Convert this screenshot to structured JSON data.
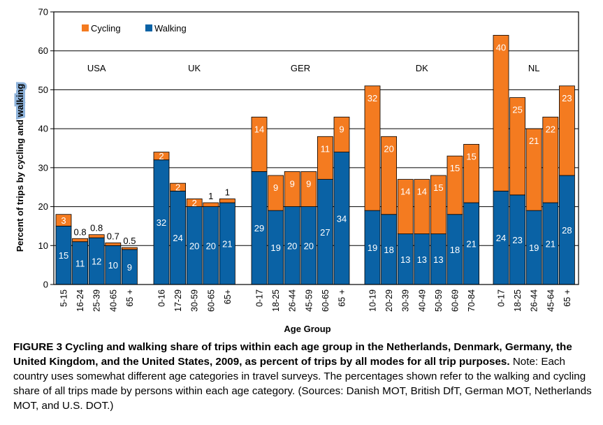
{
  "colors": {
    "cycling": "#f47b20",
    "walking": "#0a62a5",
    "frame": "#000000",
    "grid": "#000000"
  },
  "chart_data": {
    "type": "bar",
    "stacked": true,
    "title": "",
    "xlabel": "Age Group",
    "ylabel_pre": "Percent of trips by cycling and ",
    "ylabel_highlight": "walking",
    "ylim": [
      0,
      70
    ],
    "yticks": [
      "0",
      "10",
      "20",
      "30",
      "40",
      "50",
      "60",
      "70"
    ],
    "grid": true,
    "legend": {
      "position": "top-left",
      "entries": [
        "Cycling",
        "Walking"
      ]
    },
    "groups": [
      {
        "country": "USA",
        "categories": [
          "5-15",
          "16-24",
          "25-39",
          "40-65",
          "65 +"
        ],
        "walking": [
          15,
          11,
          12,
          10,
          9
        ],
        "cycling": [
          3,
          0.8,
          0.8,
          0.7,
          0.5
        ],
        "walking_labels": [
          "15",
          "11",
          "12",
          "10",
          "9"
        ],
        "cycling_labels": [
          "3",
          "0.8",
          "0.8",
          "0.7",
          "0.5"
        ],
        "cycling_label_outside": [
          false,
          true,
          true,
          true,
          true
        ]
      },
      {
        "country": "UK",
        "categories": [
          "0-16",
          "17-29",
          "30-59",
          "60-65",
          "65+"
        ],
        "walking": [
          32,
          24,
          20,
          20,
          21
        ],
        "cycling": [
          2,
          2,
          2,
          1,
          1
        ],
        "walking_labels": [
          "32",
          "24",
          "20",
          "20",
          "21"
        ],
        "cycling_labels": [
          "2",
          "2",
          "2",
          "1",
          "1"
        ],
        "cycling_label_outside": [
          false,
          false,
          false,
          true,
          true
        ]
      },
      {
        "country": "GER",
        "categories": [
          "0-17",
          "18-25",
          "26-44",
          "45-59",
          "60-65",
          "65 +"
        ],
        "walking": [
          29,
          19,
          20,
          20,
          27,
          34
        ],
        "cycling": [
          14,
          9,
          9,
          9,
          11,
          9
        ],
        "walking_labels": [
          "29",
          "19",
          "20",
          "20",
          "27",
          "34"
        ],
        "cycling_labels": [
          "14",
          "9",
          "9",
          "9",
          "11",
          "9"
        ],
        "cycling_label_outside": [
          false,
          false,
          false,
          false,
          false,
          false
        ]
      },
      {
        "country": "DK",
        "categories": [
          "10-19",
          "20-29",
          "30-39",
          "40-49",
          "50-59",
          "60-69",
          "70-84"
        ],
        "walking": [
          19,
          18,
          13,
          13,
          13,
          18,
          21
        ],
        "cycling": [
          32,
          20,
          14,
          14,
          15,
          15,
          15
        ],
        "walking_labels": [
          "19",
          "18",
          "13",
          "13",
          "13",
          "18",
          "21"
        ],
        "cycling_labels": [
          "32",
          "20",
          "14",
          "14",
          "15",
          "15",
          "15"
        ],
        "cycling_label_outside": [
          false,
          false,
          false,
          false,
          false,
          false,
          false
        ]
      },
      {
        "country": "NL",
        "categories": [
          "0-17",
          "18-25",
          "26-44",
          "45-64",
          "65 +"
        ],
        "walking": [
          24,
          23,
          19,
          21,
          28
        ],
        "cycling": [
          40,
          25,
          21,
          22,
          23
        ],
        "walking_labels": [
          "24",
          "23",
          "19",
          "21",
          "28"
        ],
        "cycling_labels": [
          "40",
          "25",
          "21",
          "22",
          "23"
        ],
        "cycling_label_outside": [
          false,
          false,
          false,
          false,
          false
        ]
      }
    ]
  },
  "caption": {
    "title": "FIGURE 3  Cycling and walking share of trips within each age group in the Netherlands, Denmark, Germany, the United Kingdom, and the United States, 2009, as percent of trips by all modes for all trip purposes.",
    "note": "Note: Each country uses somewhat different age categories in travel surveys. The percentages shown refer to the walking and cycling share of all trips made by persons within each age category. (Sources: Danish MOT, British DfT, German MOT, Netherlands MOT, and U.S. DOT.)"
  }
}
